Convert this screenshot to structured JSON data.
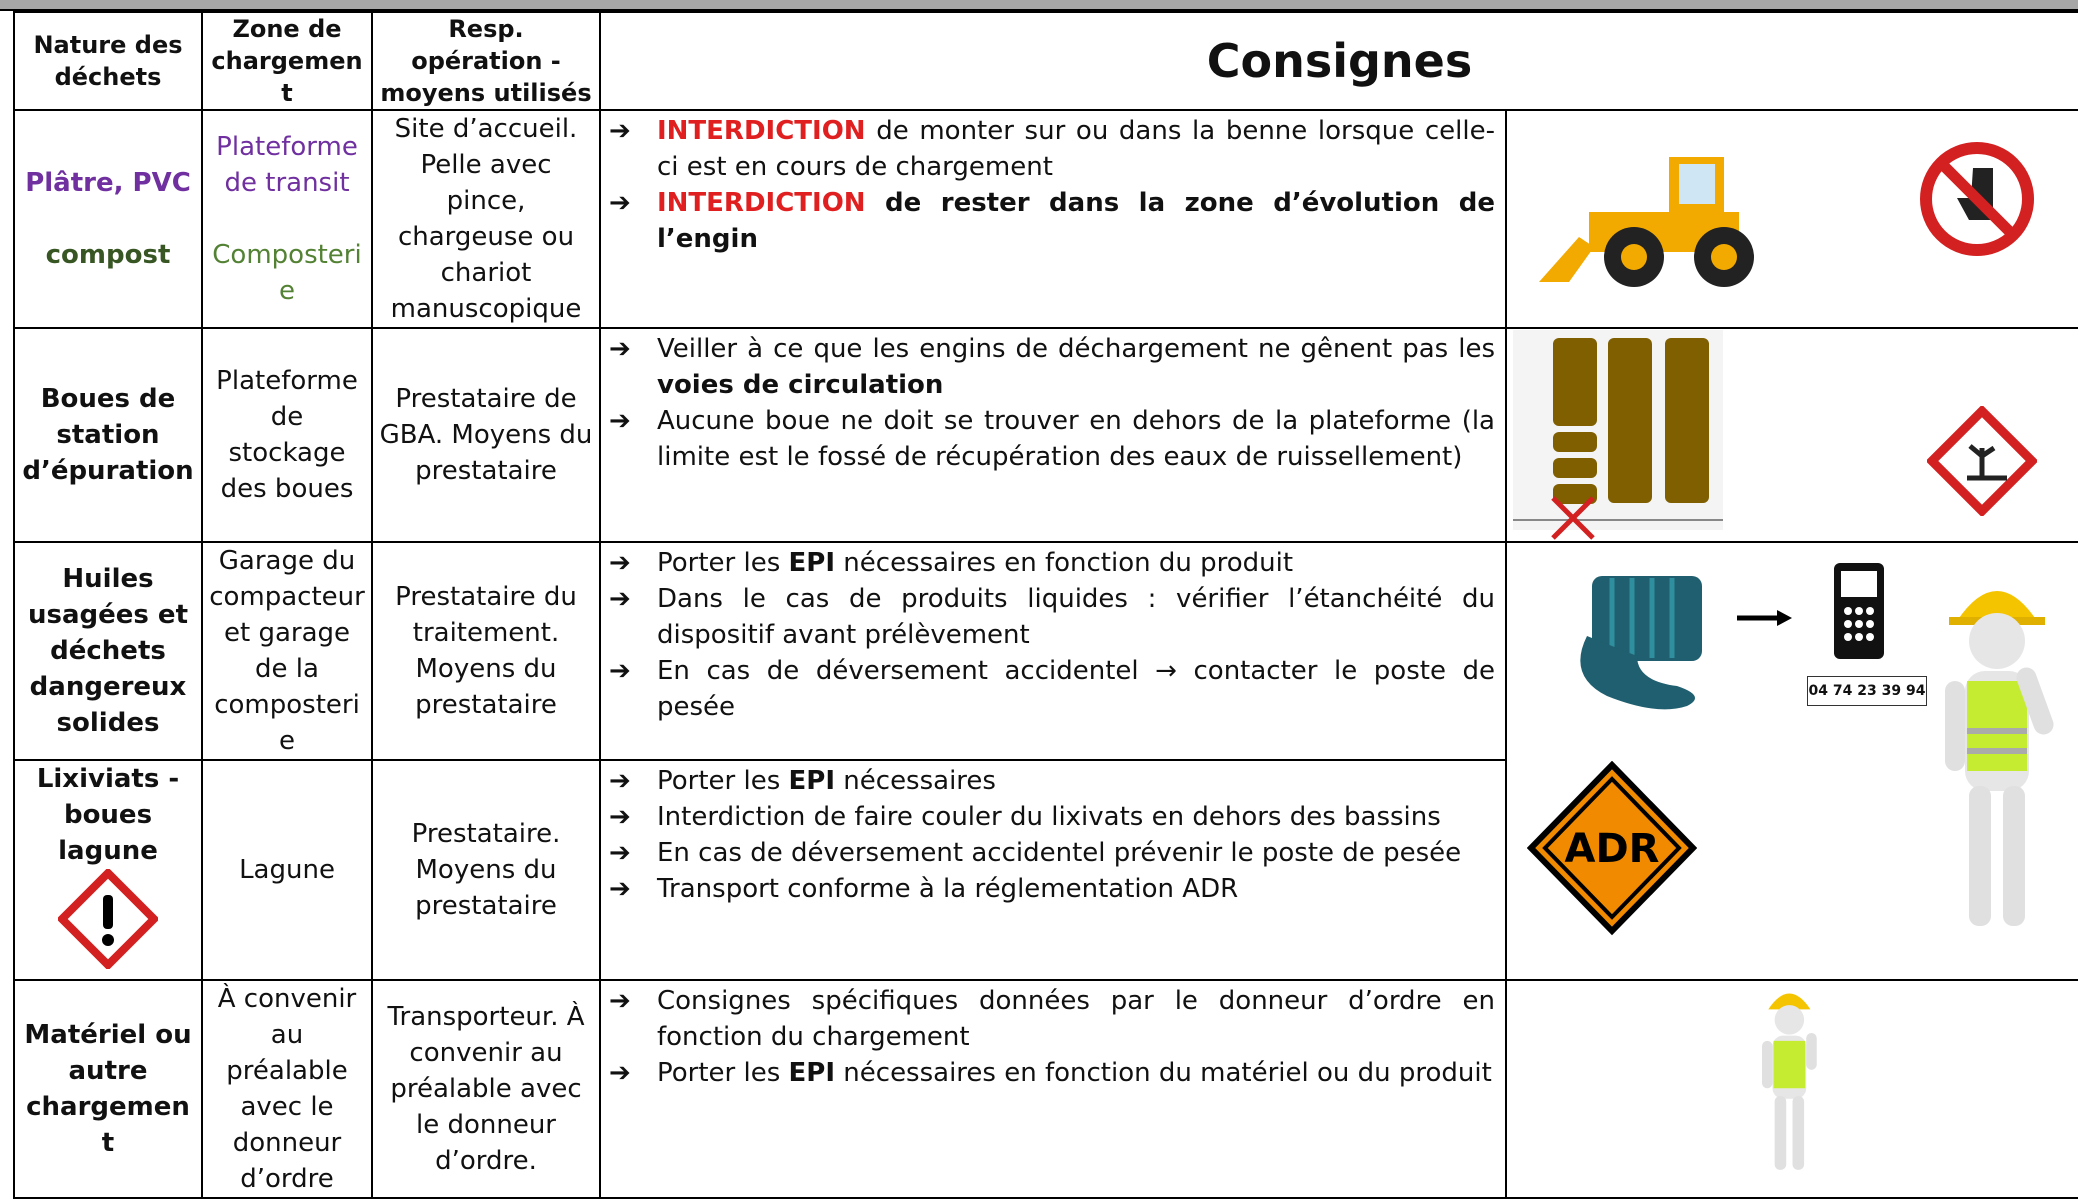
{
  "header": {
    "nature": "Nature des déchets",
    "zone": "Zone de chargement",
    "resp": "Resp. opération - moyens utilisés",
    "consignes": "Consignes"
  },
  "rows": [
    {
      "nature": [
        {
          "text": "Plâtre, PVC",
          "color": "#7030a0"
        },
        {
          "text": "compost",
          "color": "#375623"
        }
      ],
      "zone": [
        {
          "text": "Plateforme de transit",
          "color": "#7030a0"
        },
        {
          "text": "Composterie",
          "color": "#548235"
        }
      ],
      "resp": "Site d’accueil. Pelle avec pince, chargeuse ou chariot manuscopique",
      "consignes": [
        [
          {
            "text": "INTERDICTION",
            "bold": true,
            "color": "#e02020"
          },
          {
            "text": " de monter sur ou dans la benne lorsque celle-ci est en cours de chargement"
          }
        ],
        [
          {
            "text": "INTERDICTION",
            "bold": true,
            "color": "#e02020"
          },
          {
            "text": " de rester dans la zone d’évolution de l’engin",
            "bold": true
          }
        ]
      ]
    },
    {
      "nature": [
        {
          "text": "Boues de station d’épuration"
        }
      ],
      "zone": [
        {
          "text": "Plateforme de stockage des boues"
        }
      ],
      "resp": "Prestataire de GBA. Moyens du prestataire",
      "consignes": [
        [
          {
            "text": "Veiller à ce que les engins de déchargement ne gênent pas les "
          },
          {
            "text": "voies de circulation",
            "bold": true
          }
        ],
        [
          {
            "text": "Aucune boue ne doit se trouver en dehors de la plateforme (la limite est le fossé de récupération des eaux de ruissellement)"
          }
        ]
      ]
    },
    {
      "nature": [
        {
          "text": "Huiles usagées et déchets dangereux solides"
        }
      ],
      "zone": [
        {
          "text": "Garage du compacteur et garage de la composterie"
        }
      ],
      "resp": "Prestataire du traitement. Moyens du prestataire",
      "consignes": [
        [
          {
            "text": "Porter les "
          },
          {
            "text": "EPI",
            "bold": true
          },
          {
            "text": " nécessaires en fonction du produit"
          }
        ],
        [
          {
            "text": "Dans le cas de produits liquides : vérifier l’étanchéité du dispositif avant prélèvement"
          }
        ],
        [
          {
            "text": "En cas de déversement accidentel → contacter le poste de pesée"
          }
        ]
      ],
      "phone": "04 74 23 39 94"
    },
    {
      "nature": [
        {
          "text": "Lixiviats - boues lagune"
        }
      ],
      "zone": [
        {
          "text": "Lagune"
        }
      ],
      "resp": "Prestataire. Moyens du prestataire",
      "consignes": [
        [
          {
            "text": "Porter les "
          },
          {
            "text": "EPI",
            "bold": true
          },
          {
            "text": " nécessaires"
          }
        ],
        [
          {
            "text": "Interdiction de faire couler du lixivats en dehors des bassins"
          }
        ],
        [
          {
            "text": "En cas de déversement accidentel prévenir le poste de pesée"
          }
        ],
        [
          {
            "text": "Transport conforme à la réglementation ADR"
          }
        ]
      ],
      "adr": "ADR"
    },
    {
      "nature": [
        {
          "text": "Matériel ou autre chargement"
        }
      ],
      "zone": [
        {
          "text": "À convenir au préalable avec le donneur d’ordre"
        }
      ],
      "resp": "Transporteur. À convenir au préalable avec le donneur d’ordre.",
      "consignes": [
        [
          {
            "text": "Consignes spécifiques données par le donneur d’ordre en fonction du chargement"
          }
        ],
        [
          {
            "text": "Porter les "
          },
          {
            "text": "EPI",
            "bold": true
          },
          {
            "text": " nécessaires en fonction du matériel ou du produit"
          }
        ]
      ]
    }
  ]
}
